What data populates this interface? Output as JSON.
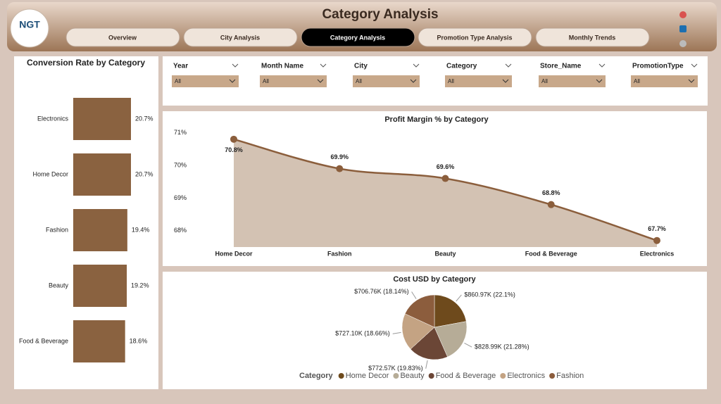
{
  "header": {
    "logo": "NGT",
    "title": "Category Analysis",
    "tabs": [
      "Overview",
      "City Analysis",
      "Category Analysis",
      "Promotion Type Analysis",
      "Monthly Trends"
    ]
  },
  "filters": [
    {
      "label": "Year",
      "value": "All"
    },
    {
      "label": "Month Name",
      "value": "All"
    },
    {
      "label": "City",
      "value": "All"
    },
    {
      "label": "Category",
      "value": "All"
    },
    {
      "label": "Store_Name",
      "value": "All"
    },
    {
      "label": "PromotionType",
      "value": "All"
    }
  ],
  "chart_data": [
    {
      "type": "hbar",
      "title": "Conversion Rate by Category",
      "categories": [
        "Electronics",
        "Home Decor",
        "Fashion",
        "Beauty",
        "Food & Beverage"
      ],
      "values": [
        20.7,
        20.7,
        19.4,
        19.2,
        18.6
      ],
      "value_labels": [
        "20.7%",
        "20.7%",
        "19.4%",
        "19.2%",
        "18.6%"
      ],
      "color": "#8a6240"
    },
    {
      "type": "area",
      "title": "Profit Margin % by Category",
      "categories": [
        "Home Decor",
        "Fashion",
        "Beauty",
        "Food & Beverage",
        "Electronics"
      ],
      "values": [
        70.8,
        69.9,
        69.6,
        68.8,
        67.7
      ],
      "value_labels": [
        "70.8%",
        "69.9%",
        "69.6%",
        "68.8%",
        "67.7%"
      ],
      "ylim": [
        67.5,
        71.4
      ],
      "yticks": [
        {
          "value": 71,
          "label": "71%"
        },
        {
          "value": 70,
          "label": "70%"
        },
        {
          "value": 69,
          "label": "69%"
        },
        {
          "value": 68,
          "label": "68%"
        }
      ],
      "color": "#8b5e3c",
      "fill": "#d3c2b3"
    },
    {
      "type": "pie",
      "title": "Cost USD by Category",
      "legend_title": "Category",
      "series": [
        {
          "name": "Home Decor",
          "color": "#6e4a1c",
          "values": [
            860970
          ],
          "value_labels": [
            "$860.97K (22.1%)"
          ]
        },
        {
          "name": "Beauty",
          "color": "#b6ac97",
          "values": [
            828990
          ],
          "value_labels": [
            "$828.99K (21.28%)"
          ]
        },
        {
          "name": "Food & Beverage",
          "color": "#6b4636",
          "values": [
            772570
          ],
          "value_labels": [
            "$772.57K (19.83%)"
          ]
        },
        {
          "name": "Electronics",
          "color": "#c4a383",
          "values": [
            727100
          ],
          "value_labels": [
            "$727.10K (18.66%)"
          ]
        },
        {
          "name": "Fashion",
          "color": "#8c5d3d",
          "values": [
            706760
          ],
          "value_labels": [
            "$706.76K (18.14%)"
          ]
        }
      ]
    }
  ]
}
